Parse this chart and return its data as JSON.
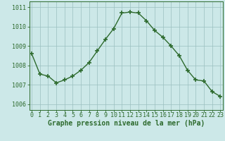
{
  "x": [
    0,
    1,
    2,
    3,
    4,
    5,
    6,
    7,
    8,
    9,
    10,
    11,
    12,
    13,
    14,
    15,
    16,
    17,
    18,
    19,
    20,
    21,
    22,
    23
  ],
  "y": [
    1008.6,
    1007.55,
    1007.45,
    1007.1,
    1007.25,
    1007.45,
    1007.75,
    1008.15,
    1008.75,
    1009.35,
    1009.9,
    1010.7,
    1010.75,
    1010.7,
    1010.3,
    1009.8,
    1009.45,
    1009.0,
    1008.5,
    1007.75,
    1007.25,
    1007.2,
    1006.65,
    1006.4
  ],
  "line_color": "#2d6a2d",
  "marker": "+",
  "bg_color": "#cce8e8",
  "grid_color": "#9bbfbf",
  "axis_color": "#2d6a2d",
  "xlabel": "Graphe pression niveau de la mer (hPa)",
  "xlabel_color": "#2d6a2d",
  "ylim": [
    1005.7,
    1011.3
  ],
  "yticks": [
    1006,
    1007,
    1008,
    1009,
    1010,
    1011
  ],
  "xticks": [
    0,
    1,
    2,
    3,
    4,
    5,
    6,
    7,
    8,
    9,
    10,
    11,
    12,
    13,
    14,
    15,
    16,
    17,
    18,
    19,
    20,
    21,
    22,
    23
  ],
  "font_color": "#2d6a2d",
  "linewidth": 1.0,
  "markersize": 4.5,
  "tick_fontsize": 6.0,
  "xlabel_fontsize": 7.0
}
